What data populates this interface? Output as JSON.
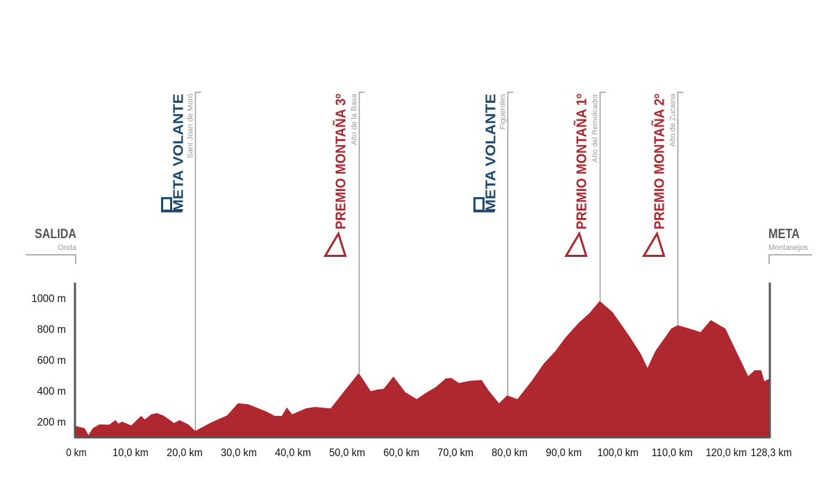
{
  "chart_data": {
    "type": "area",
    "title": "",
    "xlabel": "",
    "ylabel": "",
    "xlim": [
      0,
      128.3
    ],
    "ylim": [
      100,
      1100
    ],
    "grid": false,
    "fill_color": "#b0282f",
    "axis_color": "#555555",
    "x": [
      0,
      1.8,
      2.5,
      3.3,
      4.5,
      6.3,
      7.5,
      8,
      8.7,
      10.4,
      12.2,
      12.9,
      14.1,
      15.1,
      16.3,
      18.3,
      19.3,
      21.0,
      22.2,
      25,
      28.1,
      30.1,
      32,
      35.2,
      36.9,
      38.2,
      39.1,
      40.1,
      42.6,
      44.3,
      47.2,
      49.9,
      52.4,
      54.6,
      55.8,
      57,
      58.8,
      61,
      63.1,
      65,
      66.5,
      68.5,
      69.5,
      70.9,
      72.9,
      75.1,
      76.3,
      78.3,
      79.8,
      81.7,
      84.2,
      86.6,
      88.6,
      90.5,
      93,
      94.9,
      96.9,
      99.3,
      102.3,
      104.5,
      105.7,
      107.2,
      110.1,
      111.3,
      114.5,
      115.5,
      117.4,
      120.1,
      124.3,
      125.5,
      126.7,
      127.3,
      128.3
    ],
    "y": [
      170,
      155,
      110,
      155,
      180,
      178,
      208,
      185,
      197,
      173,
      235,
      212,
      245,
      253,
      238,
      188,
      208,
      178,
      137,
      190,
      238,
      317,
      310,
      265,
      235,
      235,
      290,
      245,
      283,
      293,
      283,
      403,
      512,
      395,
      405,
      410,
      490,
      388,
      343,
      388,
      418,
      478,
      480,
      448,
      462,
      467,
      403,
      316,
      368,
      343,
      455,
      575,
      650,
      740,
      837,
      897,
      979,
      905,
      755,
      635,
      545,
      657,
      800,
      822,
      789,
      777,
      855,
      800,
      492,
      530,
      530,
      458,
      477
    ],
    "x_ticks": [
      {
        "value": 0,
        "label": "0 km"
      },
      {
        "value": 10,
        "label": "10,0 km"
      },
      {
        "value": 20,
        "label": "20,0 km"
      },
      {
        "value": 30,
        "label": "30,0 km"
      },
      {
        "value": 40,
        "label": "40,0 km"
      },
      {
        "value": 50,
        "label": "50,0 km"
      },
      {
        "value": 60,
        "label": "60,0 km"
      },
      {
        "value": 70,
        "label": "70,0 km"
      },
      {
        "value": 80,
        "label": "80,0 km"
      },
      {
        "value": 90,
        "label": "90,0 km"
      },
      {
        "value": 100,
        "label": "100,0 km"
      },
      {
        "value": 110,
        "label": "110,0 km"
      },
      {
        "value": 120,
        "label": "120,0 km"
      },
      {
        "value": 128.3,
        "label": "128,3 km"
      }
    ],
    "y_ticks": [
      {
        "value": 200,
        "label": "200 m"
      },
      {
        "value": 400,
        "label": "400 m"
      },
      {
        "value": 600,
        "label": "600 m"
      },
      {
        "value": 800,
        "label": "800 m"
      },
      {
        "value": 1000,
        "label": "1000 m"
      }
    ],
    "markers": [
      {
        "km": 22.2,
        "type": "sprint",
        "icon": "flag-icon",
        "title": "META VOLANTE",
        "place": "Sant Joan de Moró",
        "color": "#1d4a6e"
      },
      {
        "km": 52.4,
        "type": "climb",
        "icon": "triangle-icon",
        "title": "PREMIO MONTAÑA 3º",
        "place": "Alto de la Basa",
        "color": "#b0252e"
      },
      {
        "km": 79.8,
        "type": "sprint",
        "icon": "flag-icon",
        "title": "META VOLANTE",
        "place": "Figueroles",
        "color": "#1d4a6e"
      },
      {
        "km": 96.9,
        "type": "climb",
        "icon": "triangle-icon",
        "title": "PREMIO MONTAÑA 1º",
        "place": "Alto del Remolcador",
        "color": "#b0252e"
      },
      {
        "km": 111.3,
        "type": "climb",
        "icon": "triangle-icon",
        "title": "PREMIO MONTAÑA 2º",
        "place": "Alto de Zucaina",
        "color": "#b0252e"
      }
    ],
    "start": {
      "title": "SALIDA",
      "place": "Onda"
    },
    "finish": {
      "title": "META",
      "place": "Montanejos"
    }
  }
}
